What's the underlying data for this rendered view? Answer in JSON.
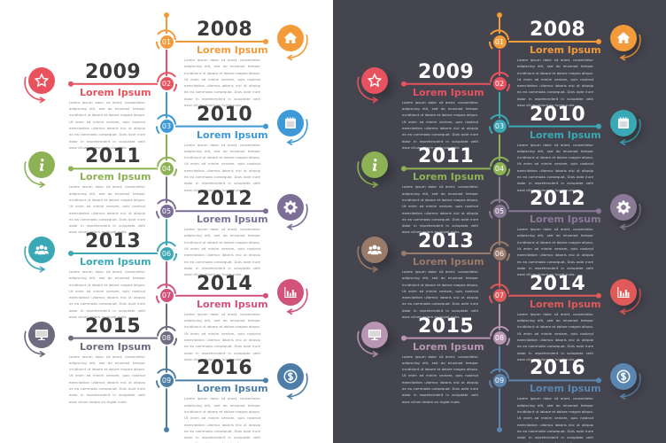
{
  "panels": [
    {
      "theme": "light",
      "background": "#ffffff",
      "items": [
        {
          "num": "01",
          "year": "2008",
          "title": "Lorem Ipsum",
          "icon": "home-icon",
          "color": "#f39b3a",
          "side": "right"
        },
        {
          "num": "02",
          "year": "2009",
          "title": "Lorem Ipsum",
          "icon": "star-icon",
          "color": "#e8525f",
          "side": "left"
        },
        {
          "num": "03",
          "year": "2010",
          "title": "Lorem Ipsum",
          "icon": "calendar-icon",
          "color": "#3d9ad6",
          "side": "right"
        },
        {
          "num": "04",
          "year": "2011",
          "title": "Lorem Ipsum",
          "icon": "info-icon",
          "color": "#8db255",
          "side": "left"
        },
        {
          "num": "05",
          "year": "2012",
          "title": "Lorem Ipsum",
          "icon": "gear-icon",
          "color": "#7b6f98",
          "side": "right"
        },
        {
          "num": "06",
          "year": "2013",
          "title": "Lorem Ipsum",
          "icon": "users-icon",
          "color": "#3aa8b5",
          "side": "left"
        },
        {
          "num": "07",
          "year": "2014",
          "title": "Lorem Ipsum",
          "icon": "bar-chart-icon",
          "color": "#d1537a",
          "side": "right"
        },
        {
          "num": "08",
          "year": "2015",
          "title": "Lorem Ipsum",
          "icon": "monitor-icon",
          "color": "#6e6a80",
          "side": "left"
        },
        {
          "num": "09",
          "year": "2016",
          "title": "Lorem Ipsum",
          "icon": "dollar-icon",
          "color": "#4d7ea8",
          "side": "right"
        }
      ]
    },
    {
      "theme": "dark",
      "background": "#44454f",
      "items": [
        {
          "num": "01",
          "year": "2008",
          "title": "Lorem Ipsum",
          "icon": "home-icon",
          "color": "#f39b3a",
          "side": "right"
        },
        {
          "num": "02",
          "year": "2009",
          "title": "Lorem Ipsum",
          "icon": "star-icon",
          "color": "#e8525f",
          "side": "left"
        },
        {
          "num": "03",
          "year": "2010",
          "title": "Lorem Ipsum",
          "icon": "calendar-icon",
          "color": "#3aa8b5",
          "side": "right"
        },
        {
          "num": "04",
          "year": "2011",
          "title": "Lorem Ipsum",
          "icon": "info-icon",
          "color": "#8db255",
          "side": "left"
        },
        {
          "num": "05",
          "year": "2012",
          "title": "Lorem Ipsum",
          "icon": "gear-icon",
          "color": "#8a7a96",
          "side": "right"
        },
        {
          "num": "06",
          "year": "2013",
          "title": "Lorem Ipsum",
          "icon": "users-icon",
          "color": "#9a7b69",
          "side": "left"
        },
        {
          "num": "07",
          "year": "2014",
          "title": "Lorem Ipsum",
          "icon": "bar-chart-icon",
          "color": "#e05a5a",
          "side": "right"
        },
        {
          "num": "08",
          "year": "2015",
          "title": "Lorem Ipsum",
          "icon": "monitor-icon",
          "color": "#b895b3",
          "side": "left"
        },
        {
          "num": "09",
          "year": "2016",
          "title": "Lorem Ipsum",
          "icon": "dollar-icon",
          "color": "#5b86b0",
          "side": "right"
        }
      ]
    }
  ],
  "body_text": "Lorem ipsum dolor sit amet, consectetur adipiscing elit, sed do eiusmod tempor incididunt ut labore et dolore magna aliqua. Ut enim ad minim veniam, quis nostrud exercitation ullamco laboris nisi ut aliquip ex ea commodo consequat. Duis aute irure dolor in reprehenderit in voluptate velit esse cillum dolore eu fugiat nulla."
}
